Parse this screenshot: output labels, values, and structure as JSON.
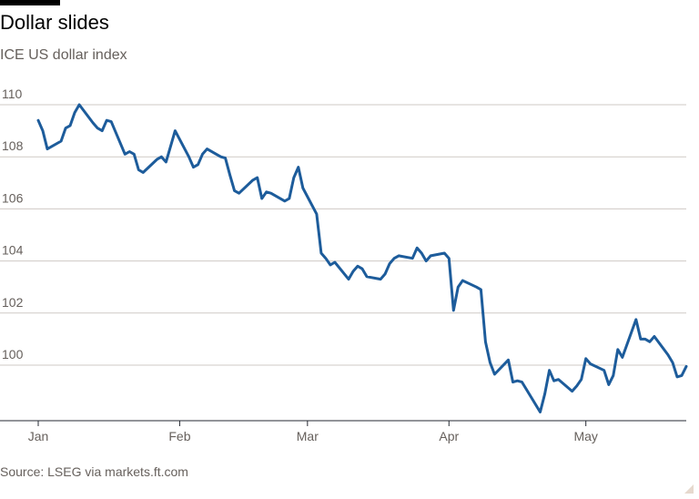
{
  "title": "Dollar slides",
  "subtitle": "ICE US dollar index",
  "source": "Source: LSEG via markets.ft.com",
  "colors": {
    "line": "#1d5c9b",
    "grid": "#cfcac5",
    "axis": "#262a33"
  },
  "chart_data": {
    "type": "line",
    "title": "Dollar slides",
    "subtitle": "ICE US dollar index",
    "xlabel": "",
    "ylabel": "",
    "ylim": [
      98,
      111
    ],
    "yticks": [
      100,
      102,
      104,
      106,
      108,
      110
    ],
    "xticks": [
      {
        "label": "Jan",
        "date": "2025-01-01"
      },
      {
        "label": "Feb",
        "date": "2025-02-01"
      },
      {
        "label": "Mar",
        "date": "2025-03-01"
      },
      {
        "label": "Apr",
        "date": "2025-04-01"
      },
      {
        "label": "May",
        "date": "2025-05-01"
      }
    ],
    "xrange": [
      "2025-01-01",
      "2025-05-23"
    ],
    "grid": true,
    "series": [
      {
        "x": [
          "2025-01-01",
          "2025-01-02",
          "2025-01-03",
          "2025-01-06",
          "2025-01-07",
          "2025-01-08",
          "2025-01-09",
          "2025-01-10",
          "2025-01-13",
          "2025-01-14",
          "2025-01-15",
          "2025-01-16",
          "2025-01-17",
          "2025-01-20",
          "2025-01-21",
          "2025-01-22",
          "2025-01-23",
          "2025-01-24",
          "2025-01-27",
          "2025-01-28",
          "2025-01-29",
          "2025-01-30",
          "2025-01-31",
          "2025-02-03",
          "2025-02-04",
          "2025-02-05",
          "2025-02-06",
          "2025-02-07",
          "2025-02-10",
          "2025-02-11",
          "2025-02-12",
          "2025-02-13",
          "2025-02-14",
          "2025-02-17",
          "2025-02-18",
          "2025-02-19",
          "2025-02-20",
          "2025-02-21",
          "2025-02-24",
          "2025-02-25",
          "2025-02-26",
          "2025-02-27",
          "2025-02-28",
          "2025-03-03",
          "2025-03-04",
          "2025-03-05",
          "2025-03-06",
          "2025-03-07",
          "2025-03-10",
          "2025-03-11",
          "2025-03-12",
          "2025-03-13",
          "2025-03-14",
          "2025-03-17",
          "2025-03-18",
          "2025-03-19",
          "2025-03-20",
          "2025-03-21",
          "2025-03-24",
          "2025-03-25",
          "2025-03-26",
          "2025-03-27",
          "2025-03-28",
          "2025-03-31",
          "2025-04-01",
          "2025-04-02",
          "2025-04-03",
          "2025-04-04",
          "2025-04-07",
          "2025-04-08",
          "2025-04-09",
          "2025-04-10",
          "2025-04-11",
          "2025-04-14",
          "2025-04-15",
          "2025-04-16",
          "2025-04-17",
          "2025-04-21",
          "2025-04-22",
          "2025-04-23",
          "2025-04-24",
          "2025-04-25",
          "2025-04-28",
          "2025-04-29",
          "2025-04-30",
          "2025-05-01",
          "2025-05-02",
          "2025-05-05",
          "2025-05-06",
          "2025-05-07",
          "2025-05-08",
          "2025-05-09",
          "2025-05-12",
          "2025-05-13",
          "2025-05-14",
          "2025-05-15",
          "2025-05-16",
          "2025-05-19",
          "2025-05-20",
          "2025-05-21",
          "2025-05-22",
          "2025-05-23"
        ],
        "y": [
          109.4,
          109.0,
          108.3,
          108.6,
          109.1,
          109.2,
          109.7,
          110.0,
          109.3,
          109.1,
          109.0,
          109.4,
          109.35,
          108.1,
          108.2,
          108.1,
          107.5,
          107.4,
          107.9,
          108.0,
          107.8,
          108.4,
          109.0,
          108.0,
          107.6,
          107.7,
          108.1,
          108.3,
          108.0,
          107.95,
          107.3,
          106.7,
          106.6,
          107.1,
          107.2,
          106.4,
          106.65,
          106.6,
          106.3,
          106.4,
          107.2,
          107.6,
          106.8,
          105.8,
          104.3,
          104.1,
          103.85,
          103.95,
          103.3,
          103.6,
          103.8,
          103.7,
          103.4,
          103.3,
          103.5,
          103.9,
          104.1,
          104.2,
          104.1,
          104.5,
          104.3,
          104.0,
          104.2,
          104.3,
          104.1,
          102.1,
          103.0,
          103.25,
          103.0,
          102.9,
          100.9,
          100.1,
          99.65,
          100.2,
          99.35,
          99.4,
          99.35,
          98.2,
          98.9,
          99.8,
          99.4,
          99.45,
          99.0,
          99.2,
          99.45,
          100.25,
          100.05,
          99.8,
          99.25,
          99.6,
          100.6,
          100.3,
          101.75,
          101.0,
          101.0,
          100.9,
          101.1,
          100.4,
          100.1,
          99.55,
          99.6,
          99.95
        ]
      }
    ]
  }
}
